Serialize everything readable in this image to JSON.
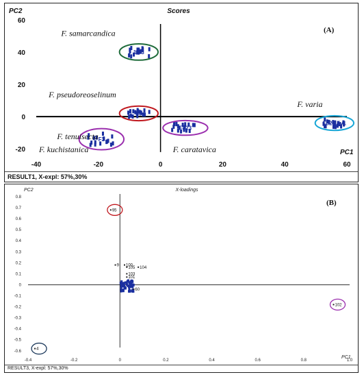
{
  "colors": {
    "marker": "#1a2fa0",
    "green": "#1e6b3a",
    "red": "#c0181e",
    "purple": "#9b2fae",
    "cyan": "#17a6d6",
    "navy": "#1d3a5c"
  },
  "chart_data": [
    {
      "id": "A",
      "type": "scatter",
      "title": "Scores",
      "panel_label": "(A)",
      "xlabel": "PC1",
      "ylabel": "PC2",
      "xlim": [
        -40,
        60
      ],
      "ylim": [
        -25,
        65
      ],
      "xticks": [
        -40,
        -20,
        0,
        20,
        40,
        60
      ],
      "yticks": [
        -20,
        0,
        20,
        40,
        60
      ],
      "status": "RESULT1, X-expl: 57%,30%",
      "groups": [
        {
          "name": "F. samarcandica",
          "label": "F. samarcandica",
          "center": [
            -7,
            40
          ],
          "spread": [
            4,
            2.5
          ],
          "markers": "1 F3",
          "color": "green"
        },
        {
          "name": "F. pseudoreoselinum",
          "label": "F. pseudoreoselinum",
          "center": [
            -7,
            2
          ],
          "spread": [
            4,
            2
          ],
          "markers": "F3",
          "color": "red"
        },
        {
          "name": "F. tenuisecta / F. kuchistanica",
          "label": "F. tenuisecta",
          "label2": "F. kuchistanica",
          "center": [
            -19,
            -14
          ],
          "spread": [
            5,
            4
          ],
          "markers": "F3",
          "color": "purple"
        },
        {
          "name": "F. caratavica",
          "label": "F. caratavica",
          "center": [
            8,
            -7
          ],
          "spread": [
            5,
            2
          ],
          "markers": "F823",
          "color": "purple"
        },
        {
          "name": "F. varia",
          "label": "F. varia",
          "center": [
            56,
            -4
          ],
          "spread": [
            4,
            2
          ],
          "markers": "F823 Fv1",
          "color": "cyan"
        }
      ]
    },
    {
      "id": "B",
      "type": "scatter",
      "title": "X-loadings",
      "panel_label": "(B)",
      "xlabel": "PC1",
      "ylabel": "PC2",
      "xlim": [
        -0.4,
        1.0
      ],
      "ylim": [
        -0.62,
        0.85
      ],
      "xticks": [
        -0.4,
        -0.2,
        0,
        0.2,
        0.4,
        0.6,
        0.8,
        1.0
      ],
      "xticklabels": [
        "-0.4",
        "-0.2",
        "0",
        "0.2",
        "0.4",
        "0.6",
        "0.8",
        "1.0"
      ],
      "yticks": [
        0.8,
        0.7,
        0.6,
        0.5,
        0.4,
        0.3,
        0.2,
        0.1,
        0,
        -0.1,
        -0.2,
        -0.3,
        -0.4,
        -0.5,
        -0.6
      ],
      "yticklabels": [
        "0.8",
        "0.7",
        "0.6",
        "0.5",
        "0.4",
        "0.3",
        "0.2",
        "0.1",
        "0",
        "-0.1",
        "-0.2",
        "-0.3",
        "-0.4",
        "-0.5",
        "-0.6"
      ],
      "status": "RESULT3, X-expl: 57%,30%",
      "points": [
        {
          "label": "95",
          "x": -0.04,
          "y": 0.68,
          "circle": "red"
        },
        {
          "label": "102",
          "x": 0.93,
          "y": -0.18,
          "circle": "purple"
        },
        {
          "label": "4",
          "x": -0.37,
          "y": -0.58,
          "circle": "navy"
        },
        {
          "label": "9",
          "x": -0.02,
          "y": 0.18
        },
        {
          "label": "100",
          "x": 0.02,
          "y": 0.18
        },
        {
          "label": "104",
          "x": 0.08,
          "y": 0.16
        },
        {
          "label": "105",
          "x": 0.03,
          "y": 0.16
        },
        {
          "label": "103",
          "x": 0.03,
          "y": 0.1
        },
        {
          "label": "101",
          "x": 0.03,
          "y": 0.07
        },
        {
          "label": "60",
          "x": 0.06,
          "y": -0.04
        }
      ],
      "cluster": {
        "x": [
          0.0,
          0.06
        ],
        "y": [
          -0.06,
          0.04
        ]
      }
    }
  ]
}
